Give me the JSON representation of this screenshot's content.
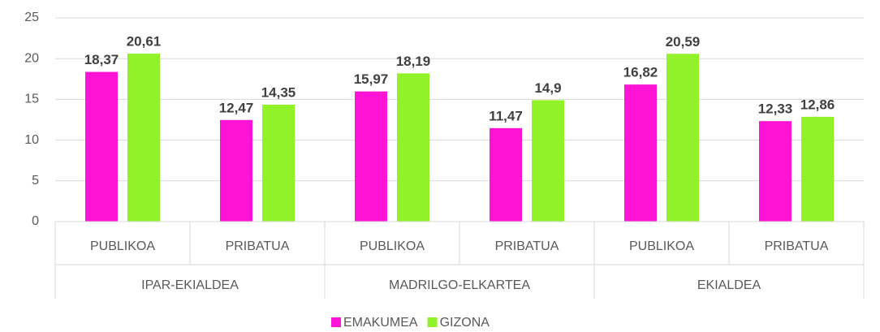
{
  "chart_data": {
    "type": "bar",
    "categories": [
      "PUBLIKOA",
      "PRIBATUA",
      "PUBLIKOA",
      "PRIBATUA",
      "PUBLIKOA",
      "PRIBATUA"
    ],
    "groups": [
      "IPAR-EKIALDEA",
      "MADRILGO-ELKARTEA",
      "EKIALDEA"
    ],
    "series": [
      {
        "name": "EMAKUMEA",
        "color": "#ff14d6",
        "values": [
          18.37,
          12.47,
          15.97,
          11.47,
          16.82,
          12.33
        ],
        "value_labels": [
          "18,37",
          "12,47",
          "15,97",
          "11,47",
          "16,82",
          "12,33"
        ]
      },
      {
        "name": "GIZONA",
        "color": "#92f22a",
        "values": [
          20.61,
          14.35,
          18.19,
          14.9,
          20.59,
          12.86
        ],
        "value_labels": [
          "20,61",
          "14,35",
          "18,19",
          "14,9",
          "20,59",
          "12,86"
        ]
      }
    ],
    "ylim": [
      0,
      25
    ],
    "yticks": [
      0,
      5,
      10,
      15,
      20,
      25
    ],
    "grid": true,
    "legend": "bottom"
  }
}
